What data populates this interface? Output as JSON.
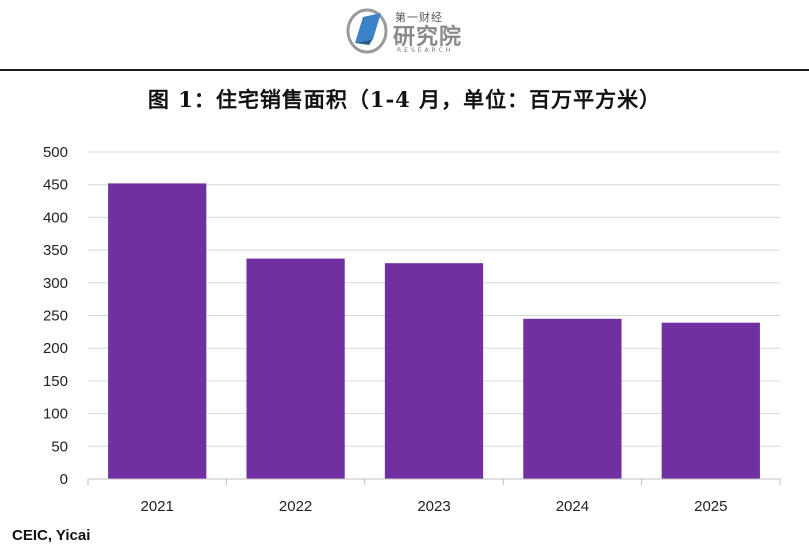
{
  "header": {
    "logo_top": "第一财经",
    "logo_main": "研究院",
    "logo_sub": "RESEARCH"
  },
  "colors": {
    "bar": "#7030a0",
    "grid": "#d9d9d9",
    "axis": "#bfbfbf",
    "rule": "#1a1a1a"
  },
  "chart_data": {
    "type": "bar",
    "title": "图 1：住宅销售面积（1-4 月，单位：百万平方米）",
    "categories": [
      "2021",
      "2022",
      "2023",
      "2024",
      "2025"
    ],
    "values": [
      452,
      337,
      330,
      245,
      239
    ],
    "ylim": [
      0,
      500
    ],
    "yticks": [
      0,
      50,
      100,
      150,
      200,
      250,
      300,
      350,
      400,
      450,
      500
    ],
    "grid": true,
    "xlabel": "",
    "ylabel": ""
  },
  "footer": {
    "source": "CEIC, Yicai"
  }
}
